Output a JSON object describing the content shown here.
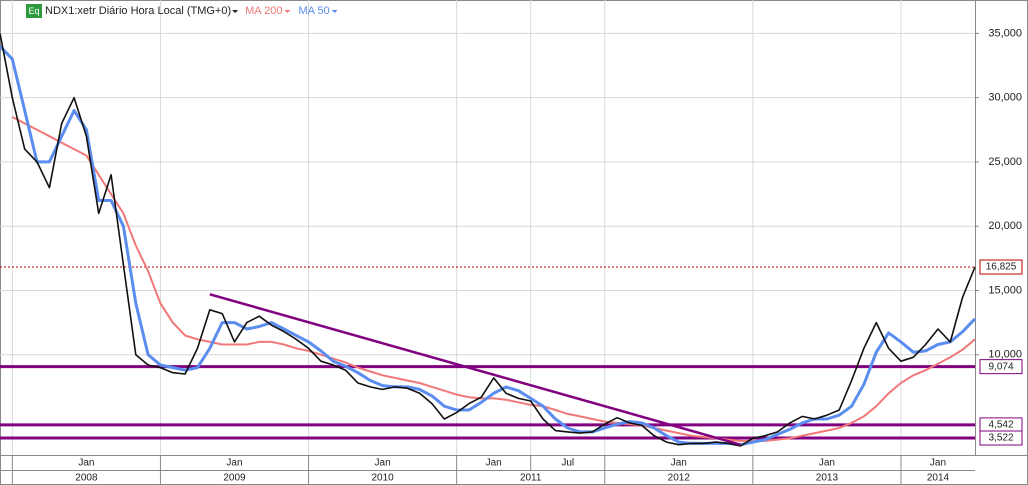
{
  "chart_data": {
    "type": "line",
    "badge": "Eq",
    "title": "NDX1:xetr Diário Hora Local (TMG+0)",
    "x": [
      "2007-12",
      "2008-01",
      "2008-02",
      "2008-03",
      "2008-04",
      "2008-05",
      "2008-06",
      "2008-07",
      "2008-08",
      "2008-09",
      "2008-10",
      "2008-11",
      "2008-12",
      "2009-01",
      "2009-02",
      "2009-03",
      "2009-04",
      "2009-05",
      "2009-06",
      "2009-07",
      "2009-08",
      "2009-09",
      "2009-10",
      "2009-11",
      "2009-12",
      "2010-01",
      "2010-02",
      "2010-03",
      "2010-04",
      "2010-05",
      "2010-06",
      "2010-07",
      "2010-08",
      "2010-09",
      "2010-10",
      "2010-11",
      "2010-12",
      "2011-01",
      "2011-02",
      "2011-03",
      "2011-04",
      "2011-05",
      "2011-06",
      "2011-07",
      "2011-08",
      "2011-09",
      "2011-10",
      "2011-11",
      "2011-12",
      "2012-01",
      "2012-02",
      "2012-03",
      "2012-04",
      "2012-05",
      "2012-06",
      "2012-07",
      "2012-08",
      "2012-09",
      "2012-10",
      "2012-11",
      "2012-12",
      "2013-01",
      "2013-02",
      "2013-03",
      "2013-04",
      "2013-05",
      "2013-06",
      "2013-07",
      "2013-08",
      "2013-09",
      "2013-10",
      "2013-11",
      "2013-12",
      "2014-01",
      "2014-02",
      "2014-03",
      "2014-04",
      "2014-05",
      "2014-06",
      "2014-07"
    ],
    "series": [
      {
        "color": "#111111",
        "values": [
          35000,
          30000,
          26000,
          25000,
          23000,
          28000,
          30000,
          27000,
          21000,
          24000,
          17000,
          10000,
          9200,
          9000,
          8600,
          8500,
          10500,
          13500,
          13200,
          11000,
          12500,
          13000,
          12300,
          11800,
          11200,
          10500,
          9500,
          9200,
          8800,
          7800,
          7500,
          7300,
          7500,
          7400,
          7000,
          6200,
          5000,
          5500,
          6200,
          6700,
          8200,
          7000,
          6600,
          6400,
          5000,
          4100,
          4000,
          3900,
          4000,
          4600,
          5100,
          4700,
          4500,
          3700,
          3200,
          3000,
          3100,
          3100,
          3200,
          3100,
          2900,
          3500,
          3700,
          4000,
          4700,
          5200,
          5000,
          5300,
          5700,
          8000,
          10500,
          12500,
          10500,
          9500,
          9800,
          10800,
          12000,
          11000,
          14500,
          16825
        ]
      },
      {
        "name": "MA 200",
        "color": "#f07878",
        "values": [
          null,
          28500,
          28000,
          27500,
          27000,
          26500,
          26000,
          25500,
          24000,
          22500,
          21000,
          18500,
          16500,
          14000,
          12500,
          11500,
          11200,
          11000,
          10800,
          10800,
          10800,
          11000,
          11000,
          10800,
          10500,
          10300,
          10000,
          9700,
          9400,
          9000,
          8700,
          8400,
          8200,
          8000,
          7800,
          7500,
          7200,
          6900,
          6700,
          6600,
          6600,
          6500,
          6300,
          6100,
          6000,
          5700,
          5400,
          5200,
          5000,
          4800,
          4700,
          4600,
          4500,
          4300,
          4100,
          3900,
          3700,
          3600,
          3500,
          3400,
          3300,
          3300,
          3300,
          3400,
          3500,
          3700,
          3900,
          4100,
          4300,
          4700,
          5200,
          6000,
          7000,
          7800,
          8400,
          8800,
          9300,
          9800,
          10400,
          11200
        ]
      },
      {
        "name": "MA 50",
        "color": "#5b8def",
        "values": [
          34000,
          33000,
          29000,
          25000,
          25000,
          27000,
          29000,
          27500,
          22000,
          22000,
          20000,
          14000,
          10000,
          9200,
          9000,
          8800,
          9000,
          10500,
          12500,
          12500,
          12000,
          12200,
          12500,
          12000,
          11500,
          11000,
          10300,
          9500,
          9100,
          8600,
          8000,
          7600,
          7500,
          7500,
          7300,
          6800,
          6000,
          5700,
          5700,
          6300,
          7000,
          7500,
          7200,
          6600,
          6000,
          5000,
          4300,
          4000,
          4000,
          4300,
          4600,
          4800,
          4700,
          4300,
          3700,
          3200,
          3100,
          3100,
          3100,
          3100,
          3000,
          3200,
          3400,
          3800,
          4200,
          4700,
          5000,
          5000,
          5300,
          6000,
          7700,
          10200,
          11700,
          11000,
          10200,
          10300,
          10800,
          11000,
          11800,
          12800
        ]
      }
    ],
    "xlim": [
      "2007-12",
      "2014-07"
    ],
    "xticks": [
      {
        "value": "2008-01",
        "label": "Jan"
      },
      {
        "value": "2009-01",
        "label": "Jan"
      },
      {
        "value": "2010-01",
        "label": "Jan"
      },
      {
        "value": "2011-01",
        "label": "Jan"
      },
      {
        "value": "2011-07",
        "label": "Jul"
      },
      {
        "value": "2012-01",
        "label": "Jan"
      },
      {
        "value": "2013-01",
        "label": "Jan"
      },
      {
        "value": "2014-01",
        "label": "Jan"
      }
    ],
    "years": [
      "2008",
      "2009",
      "2010",
      "2011",
      "2012",
      "2013",
      "2014"
    ],
    "ylim": [
      2200,
      37600
    ],
    "yticks": [
      {
        "value": 10000,
        "label": "10,000"
      },
      {
        "value": 15000,
        "label": "15,000"
      },
      {
        "value": 20000,
        "label": "20,000"
      },
      {
        "value": 25000,
        "label": "25,000"
      },
      {
        "value": 30000,
        "label": "30,000"
      },
      {
        "value": 35000,
        "label": "35,000"
      }
    ],
    "grid": true,
    "hlines": [
      {
        "value": 9074,
        "label": "9,074"
      },
      {
        "value": 4542,
        "label": "4,542"
      },
      {
        "value": 3522,
        "label": "3,522"
      }
    ],
    "hline_color": "#800080",
    "last_price": {
      "value": 16825,
      "label": "16,825"
    },
    "trendline": {
      "x": [
        "2009-05",
        "2012-12"
      ],
      "values": [
        14700,
        3000
      ]
    }
  }
}
